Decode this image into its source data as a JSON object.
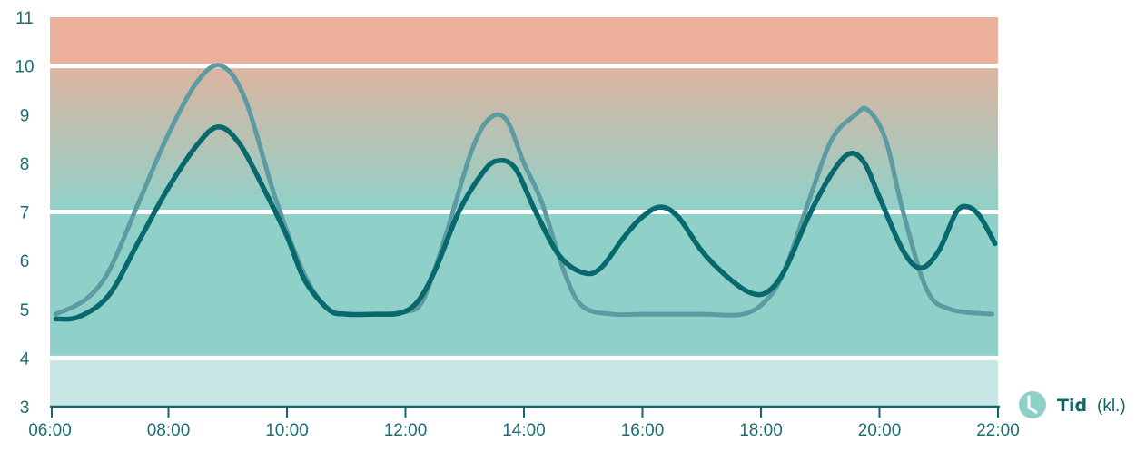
{
  "chart_data": {
    "type": "line",
    "xlabel": "Tid",
    "xunit": "(kl.)",
    "x_ticks": [
      "06:00",
      "08:00",
      "10:00",
      "12:00",
      "14:00",
      "16:00",
      "18:00",
      "20:00",
      "22:00"
    ],
    "y_ticks": [
      "3",
      "4",
      "5",
      "6",
      "7",
      "8",
      "9",
      "10",
      "11"
    ],
    "xlim": [
      6,
      22
    ],
    "ylim": [
      3,
      11
    ],
    "bands": [
      {
        "from": 3,
        "to": 4,
        "color": "#c7e6e3"
      },
      {
        "from": 4,
        "to": 7,
        "color": "#8fd1c9"
      },
      {
        "from": 7,
        "to": 10,
        "color_bottom": "#8fd1c9",
        "color_top": "#ddb4a0"
      },
      {
        "from": 10,
        "to": 11,
        "color": "#edb19b"
      }
    ],
    "series": [
      {
        "color": "#5b9ba1",
        "points": [
          [
            6.1,
            4.9
          ],
          [
            6.6,
            5.2
          ],
          [
            7.0,
            5.8
          ],
          [
            7.5,
            7.2
          ],
          [
            8.0,
            8.6
          ],
          [
            8.5,
            9.7
          ],
          [
            8.9,
            10.0
          ],
          [
            9.3,
            9.3
          ],
          [
            9.8,
            7.3
          ],
          [
            10.3,
            5.7
          ],
          [
            10.7,
            5.0
          ],
          [
            11.0,
            4.9
          ],
          [
            11.5,
            4.9
          ],
          [
            12.0,
            4.95
          ],
          [
            12.3,
            5.2
          ],
          [
            12.7,
            6.6
          ],
          [
            13.1,
            8.2
          ],
          [
            13.4,
            8.9
          ],
          [
            13.7,
            8.9
          ],
          [
            14.0,
            8.0
          ],
          [
            14.3,
            7.2
          ],
          [
            14.7,
            5.7
          ],
          [
            15.0,
            5.05
          ],
          [
            15.5,
            4.9
          ],
          [
            16.0,
            4.9
          ],
          [
            17.0,
            4.9
          ],
          [
            17.7,
            4.9
          ],
          [
            18.1,
            5.2
          ],
          [
            18.4,
            5.8
          ],
          [
            18.8,
            7.2
          ],
          [
            19.2,
            8.5
          ],
          [
            19.6,
            9.0
          ],
          [
            19.8,
            9.1
          ],
          [
            20.1,
            8.5
          ],
          [
            20.4,
            7.0
          ],
          [
            20.8,
            5.4
          ],
          [
            21.2,
            5.0
          ],
          [
            21.9,
            4.9
          ]
        ]
      },
      {
        "color": "#07686d",
        "points": [
          [
            6.1,
            4.8
          ],
          [
            6.5,
            4.85
          ],
          [
            7.0,
            5.3
          ],
          [
            7.5,
            6.4
          ],
          [
            8.0,
            7.5
          ],
          [
            8.5,
            8.4
          ],
          [
            8.85,
            8.75
          ],
          [
            9.2,
            8.4
          ],
          [
            9.6,
            7.5
          ],
          [
            10.0,
            6.5
          ],
          [
            10.3,
            5.6
          ],
          [
            10.7,
            5.0
          ],
          [
            11.0,
            4.9
          ],
          [
            11.5,
            4.9
          ],
          [
            11.9,
            4.92
          ],
          [
            12.2,
            5.15
          ],
          [
            12.5,
            5.8
          ],
          [
            12.9,
            7.0
          ],
          [
            13.3,
            7.8
          ],
          [
            13.55,
            8.05
          ],
          [
            13.85,
            7.9
          ],
          [
            14.2,
            7.0
          ],
          [
            14.6,
            6.1
          ],
          [
            15.0,
            5.75
          ],
          [
            15.3,
            5.85
          ],
          [
            15.7,
            6.5
          ],
          [
            16.0,
            6.9
          ],
          [
            16.3,
            7.1
          ],
          [
            16.6,
            6.9
          ],
          [
            17.0,
            6.2
          ],
          [
            17.4,
            5.7
          ],
          [
            17.8,
            5.35
          ],
          [
            18.1,
            5.35
          ],
          [
            18.4,
            5.8
          ],
          [
            18.8,
            6.9
          ],
          [
            19.2,
            7.8
          ],
          [
            19.5,
            8.2
          ],
          [
            19.75,
            8.0
          ],
          [
            20.0,
            7.3
          ],
          [
            20.4,
            6.2
          ],
          [
            20.7,
            5.85
          ],
          [
            21.0,
            6.2
          ],
          [
            21.3,
            7.0
          ],
          [
            21.5,
            7.1
          ],
          [
            21.7,
            6.9
          ],
          [
            21.95,
            6.35
          ]
        ]
      }
    ]
  }
}
